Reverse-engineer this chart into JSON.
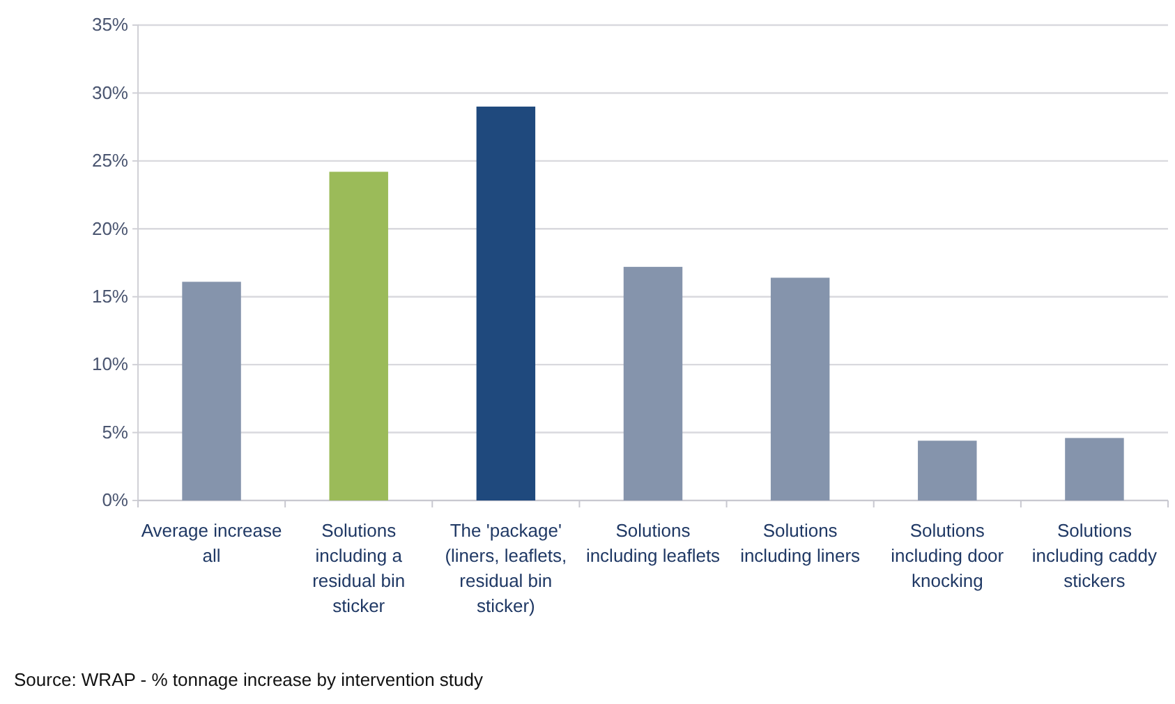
{
  "chart_data": {
    "type": "bar",
    "categories": [
      "Average increase all",
      "Solutions including a residual bin sticker",
      "The 'package' (liners, leaflets, residual bin sticker)",
      "Solutions including leaflets",
      "Solutions including liners",
      "Solutions including door knocking",
      "Solutions including caddy stickers"
    ],
    "values": [
      16.1,
      24.2,
      29.0,
      17.2,
      16.4,
      4.4,
      4.6
    ],
    "colors": [
      "#8594ac",
      "#9bbb59",
      "#1f497d",
      "#8594ac",
      "#8594ac",
      "#8594ac",
      "#8594ac"
    ],
    "ylim": [
      0,
      35
    ],
    "yticks": [
      {
        "value": 0,
        "label": "0%"
      },
      {
        "value": 5,
        "label": "5%"
      },
      {
        "value": 10,
        "label": "10%"
      },
      {
        "value": 15,
        "label": "15%"
      },
      {
        "value": 20,
        "label": "20%"
      },
      {
        "value": 25,
        "label": "25%"
      },
      {
        "value": 30,
        "label": "30%"
      },
      {
        "value": 35,
        "label": "35%"
      }
    ],
    "grid": "y",
    "annotations": [
      "Source: WRAP - % tonnage increase by intervention study"
    ]
  }
}
